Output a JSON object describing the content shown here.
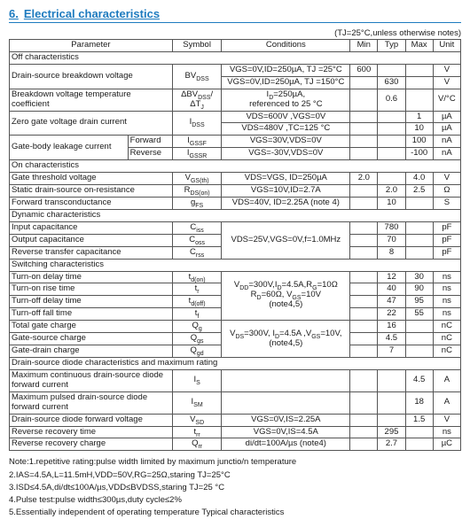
{
  "title_num": "6.",
  "title_txt": "Electrical characteristics",
  "cond_note": "(TJ=25°C,unless otherwise notes)",
  "hdr": {
    "param": "Parameter",
    "sym": "Symbol",
    "cond": "Conditions",
    "min": "Min",
    "typ": "Typ",
    "max": "Max",
    "unit": "Unit"
  },
  "grp": {
    "off": "Off characteristics",
    "on": "On characteristics",
    "dyn": "Dynamic characteristics",
    "sw": "Switching characteristics",
    "diode": "Drain-source diode characteristics and maximum rating"
  },
  "rows": {
    "bvdss": {
      "p": "Drain-source breakdown voltage",
      "s": "BVDSS",
      "c1": "VGS=0V,ID=250µA, TJ =25°C",
      "c2": "VGS=0V,ID=250µA, TJ =150°C",
      "min": "600",
      "typ": "630",
      "u": "V",
      "u2": "V"
    },
    "dbv": {
      "p": "Breakdown voltage temperature coefficient",
      "s": "ΔBVDSS/ΔTJ",
      "c": "ID=250µA,\nreferenced to 25 °C",
      "typ": "0.6",
      "u": "V/°C"
    },
    "idss": {
      "p": "Zero gate voltage drain current",
      "s": "IDSS",
      "c1": "VDS=600V ,VGS=0V",
      "c2": "VDS=480V ,TC=125 °C",
      "max1": "1",
      "max2": "10",
      "u": "µA",
      "u2": "µA"
    },
    "igf": {
      "p": "Gate-body leakage current",
      "p1": "Forward",
      "p2": "Reverse",
      "s1": "IGSSF",
      "s2": "IGSSR",
      "c1": "VGS=30V,VDS=0V",
      "c2": "VGS=-30V,VDS=0V",
      "max1": "100",
      "max2": "-100",
      "u": "nA",
      "u2": "nA"
    },
    "vth": {
      "p": "Gate threshold voltage",
      "s": "VGS(th)",
      "c": "VDS=VGS, ID=250µA",
      "min": "2.0",
      "max": "4.0",
      "u": "V"
    },
    "rds": {
      "p": "Static drain-source on-resistance",
      "s": "RDS(on)",
      "c": "VGS=10V,ID=2.7A",
      "typ": "2.0",
      "max": "2.5",
      "u": "Ω"
    },
    "gfs": {
      "p": "Forward transconductance",
      "s": "gFS",
      "c": "VDS=40V, ID=2.25A   (note 4)",
      "typ": "10",
      "u": "S"
    },
    "ciss": {
      "p": "Input capacitance",
      "s": "Ciss",
      "typ": "780",
      "u": "pF"
    },
    "coss": {
      "p": "Output capacitance",
      "s": "Coss",
      "typ": "70",
      "u": "pF",
      "c": "VDS=25V,VGS=0V,f=1.0MHz"
    },
    "crss": {
      "p": "Reverse transfer capacitance",
      "s": "Crss",
      "typ": "8",
      "u": "pF"
    },
    "tdon": {
      "p": "Turn-on delay time",
      "s": "td(on)",
      "typ": "12",
      "max": "30",
      "u": "ns"
    },
    "tr": {
      "p": "Turn-on rise time",
      "s": "tr",
      "typ": "40",
      "max": "90",
      "u": "ns",
      "c": "VDD=300V,ID=4.5A,RG=10Ω\nRD=60Ω, VGS=10V\n(note4,5)"
    },
    "tdoff": {
      "p": "Turn-off delay time",
      "s": "td(off)",
      "typ": "47",
      "max": "95",
      "u": "ns"
    },
    "tf": {
      "p": "Turn-off fall time",
      "s": "tf",
      "typ": "22",
      "max": "55",
      "u": "ns"
    },
    "qg": {
      "p": "Total gate charge",
      "s": "Qg",
      "typ": "16",
      "u": "nC"
    },
    "qgs": {
      "p": "Gate-source charge",
      "s": "Qgs",
      "typ": "4.5",
      "u": "nC",
      "c": "VDS=300V, ID=4.5A ,VGS=10V,\n(note4,5)"
    },
    "qgd": {
      "p": "Gate-drain charge",
      "s": "Qgd",
      "typ": "7",
      "u": "nC"
    },
    "is": {
      "p": "Maximum continuous drain-source diode forward current",
      "s": "IS",
      "max": "4.5",
      "u": "A"
    },
    "ism": {
      "p": "Maximum pulsed drain-source diode forward current",
      "s": "ISM",
      "max": "18",
      "u": "A"
    },
    "vsd": {
      "p": "Drain-source diode forward voltage",
      "s": "VSD",
      "c": "VGS=0V,IS=2.25A",
      "max": "1.5",
      "u": "V"
    },
    "trr": {
      "p": "Reverse recovery time",
      "s": "trr",
      "c": "VGS=0V,IS=4.5A",
      "typ": "295",
      "u": "ns"
    },
    "qrr": {
      "p": "Reverse recovery charge",
      "s": "Qrr",
      "c": "di/dt=100A/µs (note4)",
      "typ": "2.7",
      "u": "µC"
    }
  },
  "notes": {
    "n1": "Note:1.repetitive rating:pulse width limited by maximum junctio/n temperature",
    "n2": "2.IAS=4.5A,L=11.5mH,VDD=50V,RG=25Ω,staring TJ=25°C",
    "n3": "3.ISD≤4.5A,di/dt≤100A/µs,VDD≤BVDSS,staring TJ=25 °C",
    "n4": "4.Pulse test:pulse width≤300µs,duty cycle≤2%",
    "n5": "5.Essentially independent of operating temperature Typical characteristics"
  }
}
